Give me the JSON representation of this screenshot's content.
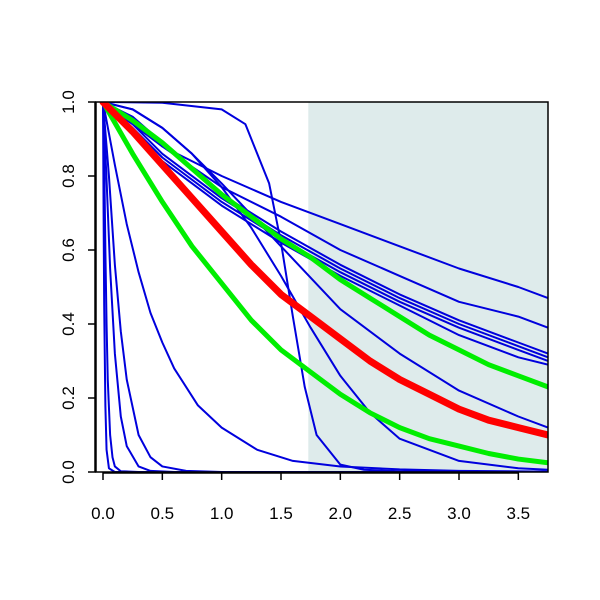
{
  "chart_data": {
    "type": "line",
    "title": "",
    "xlabel": "",
    "ylabel": "",
    "xlim": [
      -0.05,
      3.75
    ],
    "ylim": [
      0.0,
      1.0
    ],
    "x_ticks": [
      0.0,
      0.5,
      1.0,
      1.5,
      2.0,
      2.5,
      3.0,
      3.5
    ],
    "x_tick_labels": [
      "0.0",
      "0.5",
      "1.0",
      "1.5",
      "2.0",
      "2.5",
      "3.0",
      "3.5"
    ],
    "y_ticks": [
      0.0,
      0.2,
      0.4,
      0.6,
      0.8,
      1.0
    ],
    "y_tick_labels": [
      "0.0",
      "0.2",
      "0.4",
      "0.6",
      "0.8",
      "1.0"
    ],
    "shaded_region": {
      "x_from": 1.73,
      "x_to": 3.75,
      "color": "#deebeb"
    },
    "grid": false,
    "series": [
      {
        "color": "#0000dd",
        "width": 2,
        "x": [
          0,
          0.25,
          0.5,
          1.0,
          1.5,
          2.0,
          2.5,
          3.0,
          3.5,
          3.75
        ],
        "y": [
          1.0,
          0.94,
          0.88,
          0.8,
          0.73,
          0.67,
          0.61,
          0.55,
          0.5,
          0.47
        ]
      },
      {
        "color": "#0000dd",
        "width": 2,
        "x": [
          0,
          0.25,
          0.5,
          1.0,
          1.5,
          2.0,
          2.5,
          3.0,
          3.5,
          3.75
        ],
        "y": [
          1.0,
          0.95,
          0.88,
          0.77,
          0.69,
          0.6,
          0.53,
          0.46,
          0.42,
          0.39
        ]
      },
      {
        "color": "#0000dd",
        "width": 2,
        "x": [
          0,
          0.25,
          0.5,
          1.0,
          1.5,
          2.0,
          2.5,
          3.0,
          3.5,
          3.75
        ],
        "y": [
          1.0,
          0.96,
          0.89,
          0.75,
          0.65,
          0.56,
          0.48,
          0.41,
          0.35,
          0.32
        ]
      },
      {
        "color": "#0000dd",
        "width": 2,
        "x": [
          0,
          0.25,
          0.5,
          1.0,
          1.5,
          2.0,
          2.5,
          3.0,
          3.5,
          3.75
        ],
        "y": [
          1.0,
          0.94,
          0.86,
          0.74,
          0.64,
          0.55,
          0.47,
          0.4,
          0.34,
          0.31
        ]
      },
      {
        "color": "#0000dd",
        "width": 2,
        "x": [
          0,
          0.25,
          0.5,
          1.0,
          1.5,
          2.0,
          2.5,
          3.0,
          3.5,
          3.75
        ],
        "y": [
          1.0,
          0.93,
          0.85,
          0.73,
          0.63,
          0.54,
          0.46,
          0.39,
          0.33,
          0.3
        ]
      },
      {
        "color": "#0000dd",
        "width": 2,
        "x": [
          0,
          0.25,
          0.5,
          1.0,
          1.5,
          2.0,
          2.5,
          3.0,
          3.5,
          3.75
        ],
        "y": [
          1.0,
          0.92,
          0.84,
          0.72,
          0.62,
          0.53,
          0.45,
          0.37,
          0.31,
          0.29
        ]
      },
      {
        "color": "#0000dd",
        "width": 2,
        "x": [
          0,
          0.25,
          0.5,
          0.75,
          1.0,
          1.5,
          2.0,
          2.5,
          3.0,
          3.5,
          3.75
        ],
        "y": [
          1.0,
          0.98,
          0.93,
          0.86,
          0.78,
          0.61,
          0.44,
          0.32,
          0.22,
          0.15,
          0.12
        ]
      },
      {
        "color": "#0000dd",
        "width": 2,
        "x": [
          0,
          0.5,
          1.0,
          1.2,
          1.4,
          1.5,
          1.6,
          1.7,
          1.8,
          2.0,
          2.2,
          2.5,
          3.0,
          3.75
        ],
        "y": [
          1.0,
          0.998,
          0.98,
          0.94,
          0.78,
          0.62,
          0.42,
          0.23,
          0.1,
          0.02,
          0.006,
          0.002,
          0.001,
          0.0
        ]
      },
      {
        "color": "#0000dd",
        "width": 2,
        "x": [
          0,
          0.25,
          0.5,
          0.75,
          1.0,
          1.25,
          1.5,
          1.75,
          2.0,
          2.25,
          2.5,
          3.0,
          3.5,
          3.75
        ],
        "y": [
          1.0,
          0.98,
          0.93,
          0.86,
          0.77,
          0.66,
          0.53,
          0.39,
          0.26,
          0.16,
          0.09,
          0.03,
          0.01,
          0.006
        ]
      },
      {
        "color": "#0000dd",
        "width": 2,
        "x": [
          0,
          0.1,
          0.2,
          0.3,
          0.4,
          0.5,
          0.6,
          0.8,
          1.0,
          1.3,
          1.6,
          2.0,
          2.5,
          3.0,
          3.75
        ],
        "y": [
          1.0,
          0.83,
          0.67,
          0.54,
          0.43,
          0.35,
          0.28,
          0.18,
          0.12,
          0.06,
          0.03,
          0.015,
          0.007,
          0.003,
          0.001
        ]
      },
      {
        "color": "#0000dd",
        "width": 2,
        "x": [
          0,
          0.05,
          0.1,
          0.15,
          0.2,
          0.3,
          0.4,
          0.5,
          0.7,
          1.0,
          1.5,
          3.75
        ],
        "y": [
          1.0,
          0.8,
          0.56,
          0.38,
          0.25,
          0.1,
          0.04,
          0.015,
          0.003,
          0.0,
          0.0,
          0.0
        ]
      },
      {
        "color": "#0000dd",
        "width": 2,
        "x": [
          0,
          0.03,
          0.06,
          0.1,
          0.15,
          0.2,
          0.3,
          0.4,
          0.6,
          1.0,
          3.75
        ],
        "y": [
          1.0,
          0.79,
          0.55,
          0.32,
          0.15,
          0.07,
          0.015,
          0.003,
          0.0,
          0.0,
          0.0
        ]
      },
      {
        "color": "#0000dd",
        "width": 2,
        "x": [
          0,
          0.01,
          0.02,
          0.03,
          0.04,
          0.06,
          0.08,
          0.1,
          0.15,
          0.3,
          3.75
        ],
        "y": [
          1.0,
          0.85,
          0.6,
          0.4,
          0.25,
          0.1,
          0.04,
          0.015,
          0.002,
          0.0,
          0.0
        ]
      },
      {
        "color": "#0000dd",
        "width": 2,
        "x": [
          0,
          0.005,
          0.01,
          0.02,
          0.03,
          0.05,
          0.1,
          3.75
        ],
        "y": [
          1.0,
          0.7,
          0.45,
          0.18,
          0.06,
          0.01,
          0.0,
          0.0
        ]
      },
      {
        "color": "#00ee00",
        "width": 5,
        "x": [
          0,
          0.25,
          0.5,
          0.75,
          1.0,
          1.25,
          1.5,
          1.75,
          2.0,
          2.25,
          2.5,
          2.75,
          3.0,
          3.25,
          3.5,
          3.75
        ],
        "y": [
          1.0,
          0.95,
          0.89,
          0.82,
          0.75,
          0.69,
          0.63,
          0.58,
          0.52,
          0.47,
          0.42,
          0.37,
          0.33,
          0.29,
          0.26,
          0.23
        ]
      },
      {
        "color": "#00ee00",
        "width": 5,
        "x": [
          0,
          0.25,
          0.5,
          0.75,
          1.0,
          1.25,
          1.5,
          1.75,
          2.0,
          2.25,
          2.5,
          2.75,
          3.0,
          3.25,
          3.5,
          3.75
        ],
        "y": [
          1.0,
          0.86,
          0.73,
          0.61,
          0.51,
          0.41,
          0.33,
          0.27,
          0.21,
          0.16,
          0.12,
          0.09,
          0.07,
          0.05,
          0.035,
          0.025
        ]
      },
      {
        "color": "#ff0000",
        "width": 7,
        "x": [
          0,
          0.25,
          0.5,
          0.75,
          1.0,
          1.25,
          1.5,
          1.75,
          2.0,
          2.25,
          2.5,
          2.75,
          3.0,
          3.25,
          3.5,
          3.75
        ],
        "y": [
          1.0,
          0.92,
          0.83,
          0.74,
          0.65,
          0.56,
          0.48,
          0.42,
          0.36,
          0.3,
          0.25,
          0.21,
          0.17,
          0.14,
          0.12,
          0.1
        ]
      }
    ]
  }
}
